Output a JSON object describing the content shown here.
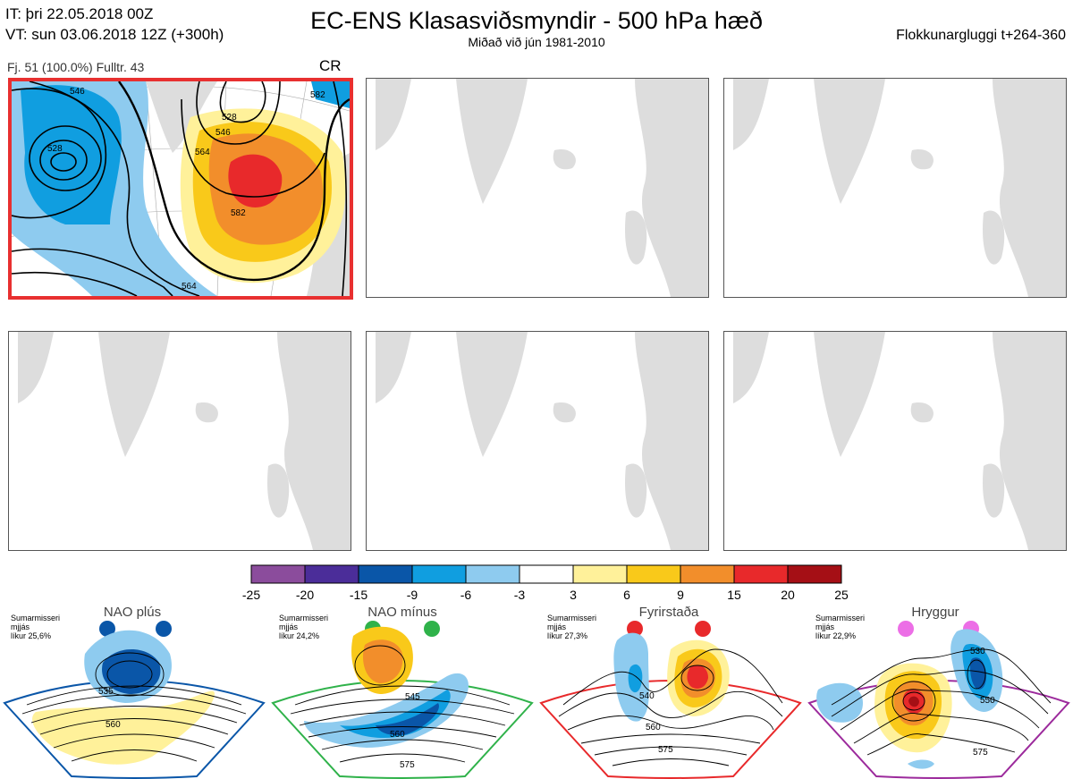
{
  "header": {
    "init_time": "IT: þri 22.05.2018 00Z",
    "valid_time": "VT: sun 03.06.2018 12Z  (+300h)",
    "title": "EC-ENS Klasasviðsmyndir - 500 hPa hæð",
    "subtitle": "Miðað við jún 1981-2010",
    "window": "Flokkunargluggi t+264-360"
  },
  "cluster_panel": {
    "info": "Fj. 51 (100.0%)   Fulltr. 43",
    "tag": "CR",
    "contour_labels": [
      "546",
      "528",
      "582",
      "528",
      "546",
      "564",
      "582",
      "564"
    ],
    "highlight_color": "#e83030"
  },
  "empty_panels": 5,
  "colorbar": {
    "ticks": [
      "-25",
      "-20",
      "-15",
      "-9",
      "-6",
      "-3",
      "3",
      "6",
      "9",
      "15",
      "20",
      "25"
    ],
    "colors": [
      "#8b4c9c",
      "#4b2d99",
      "#0a56a8",
      "#109ee0",
      "#8ecbef",
      "#ffffff",
      "#fff19a",
      "#f9c91a",
      "#f28e2b",
      "#e8292b",
      "#a50f15"
    ]
  },
  "regimes": [
    {
      "name": "NAO plús",
      "season": "Sumarmisseri",
      "label": "mjjás",
      "prob": "líkur 25,6%",
      "color": "#0a56a8",
      "contours": [
        "535",
        "560"
      ]
    },
    {
      "name": "NAO mínus",
      "season": "Sumarmisseri",
      "label": "mjjás",
      "prob": "líkur 24,2%",
      "color": "#2fb24a",
      "contours": [
        "545",
        "560",
        "575"
      ]
    },
    {
      "name": "Fyrirstaða",
      "season": "Sumarmisseri",
      "label": "mjjás",
      "prob": "líkur 27,3%",
      "color": "#e8292b",
      "contours": [
        "540",
        "560",
        "575"
      ]
    },
    {
      "name": "Hryggur",
      "season": "Sumarmisseri",
      "label": "mjjás",
      "prob": "líkur 22,9%",
      "color": "#9c2a9c",
      "contours": [
        "530",
        "550",
        "575"
      ]
    }
  ]
}
